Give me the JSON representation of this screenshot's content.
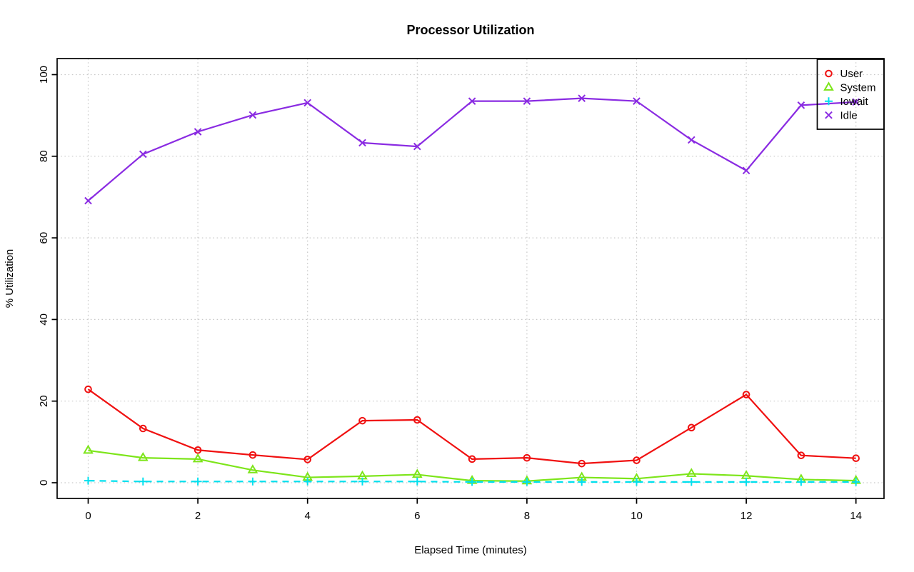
{
  "title": "Processor Utilization",
  "chart_data": {
    "type": "line",
    "title": "Processor Utilization",
    "xlabel": "Elapsed Time (minutes)",
    "ylabel": "% Utilization",
    "xlim": [
      0,
      14
    ],
    "ylim": [
      0,
      100
    ],
    "xticks": [
      0,
      2,
      4,
      6,
      8,
      10,
      12,
      14
    ],
    "yticks": [
      0,
      20,
      40,
      60,
      80,
      100
    ],
    "grid": "dotted-lightgray-both-axes",
    "legend_position": "top-right-inside",
    "x": [
      0,
      1,
      2,
      3,
      4,
      5,
      6,
      7,
      8,
      9,
      10,
      11,
      12,
      13,
      14
    ],
    "series": [
      {
        "name": "User",
        "marker": "circle",
        "line": "solid",
        "color": "#f01010",
        "values": [
          22.9,
          13.3,
          8.0,
          6.8,
          5.7,
          15.2,
          15.4,
          5.8,
          6.1,
          4.7,
          5.5,
          13.5,
          21.6,
          6.7,
          6.0
        ]
      },
      {
        "name": "System",
        "marker": "triangle",
        "line": "solid",
        "color": "#7de51a",
        "values": [
          7.9,
          6.1,
          5.8,
          3.1,
          1.3,
          1.6,
          2.0,
          0.5,
          0.4,
          1.3,
          1.0,
          2.2,
          1.7,
          0.8,
          0.5
        ]
      },
      {
        "name": "Iowait",
        "marker": "plus",
        "line": "dashed",
        "color": "#00e0ee",
        "values": [
          0.5,
          0.3,
          0.3,
          0.3,
          0.3,
          0.3,
          0.3,
          0.2,
          0.2,
          0.2,
          0.2,
          0.2,
          0.2,
          0.2,
          0.2
        ]
      },
      {
        "name": "Idle",
        "marker": "x",
        "line": "solid",
        "color": "#8a2be2",
        "values": [
          69.1,
          80.5,
          86.0,
          90.1,
          93.1,
          83.3,
          82.4,
          93.5,
          93.5,
          94.2,
          93.5,
          84.0,
          76.5,
          92.5,
          93.3
        ]
      }
    ]
  },
  "colors": {
    "grid": "#c9c9c9",
    "axis": "#000000",
    "background": "#ffffff"
  }
}
